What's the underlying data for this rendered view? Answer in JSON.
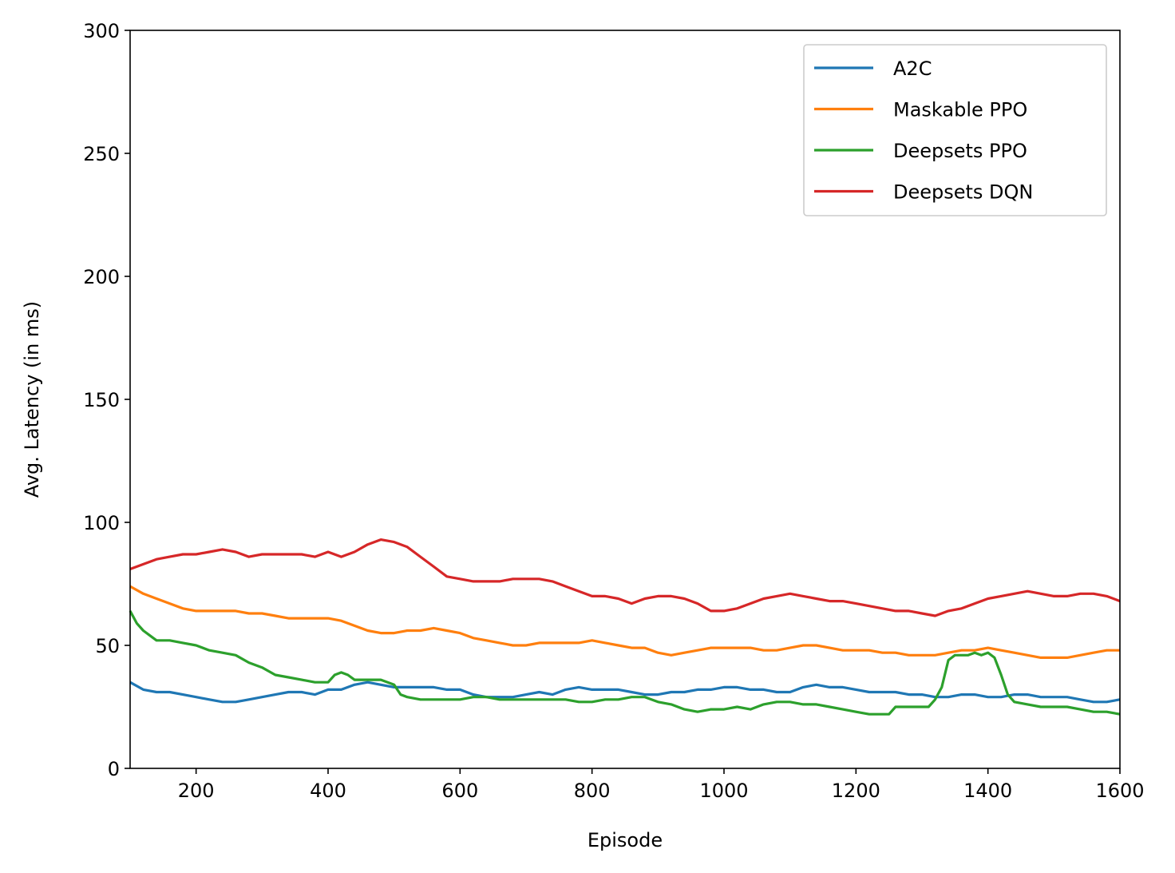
{
  "chart_data": {
    "type": "line",
    "title": "",
    "xlabel": "Episode",
    "ylabel": "Avg. Latency (in ms)",
    "xlim": [
      100,
      1600
    ],
    "ylim": [
      0,
      300
    ],
    "xticks": [
      200,
      400,
      600,
      800,
      1000,
      1200,
      1400,
      1600
    ],
    "xtick_labels": [
      "200",
      "400",
      "600",
      "800",
      "1000",
      "1200",
      "1400",
      "1600"
    ],
    "yticks": [
      0,
      50,
      100,
      150,
      200,
      250,
      300
    ],
    "ytick_labels": [
      "0",
      "50",
      "100",
      "150",
      "200",
      "250",
      "300"
    ],
    "grid": false,
    "legend_position": "top-right",
    "series": [
      {
        "name": "A2C",
        "color": "#1f77b4",
        "x": [
          100,
          120,
          140,
          160,
          180,
          200,
          220,
          240,
          260,
          280,
          300,
          320,
          340,
          360,
          380,
          400,
          420,
          440,
          460,
          480,
          500,
          520,
          540,
          560,
          580,
          600,
          620,
          640,
          660,
          680,
          700,
          720,
          740,
          760,
          780,
          800,
          820,
          840,
          860,
          880,
          900,
          920,
          940,
          960,
          980,
          1000,
          1020,
          1040,
          1060,
          1080,
          1100,
          1120,
          1140,
          1160,
          1180,
          1200,
          1220,
          1240,
          1260,
          1280,
          1300,
          1320,
          1340,
          1360,
          1380,
          1400,
          1420,
          1440,
          1460,
          1480,
          1500,
          1520,
          1540,
          1560,
          1580,
          1600
        ],
        "y": [
          35,
          32,
          31,
          31,
          30,
          29,
          28,
          27,
          27,
          28,
          29,
          30,
          31,
          31,
          30,
          32,
          32,
          34,
          35,
          34,
          33,
          33,
          33,
          33,
          32,
          32,
          30,
          29,
          29,
          29,
          30,
          31,
          30,
          32,
          33,
          32,
          32,
          32,
          31,
          30,
          30,
          31,
          31,
          32,
          32,
          33,
          33,
          32,
          32,
          31,
          31,
          33,
          34,
          33,
          33,
          32,
          31,
          31,
          31,
          30,
          30,
          29,
          29,
          30,
          30,
          29,
          29,
          30,
          30,
          29,
          29,
          29,
          28,
          27,
          27,
          28
        ]
      },
      {
        "name": "Maskable PPO",
        "color": "#ff7f0e",
        "x": [
          100,
          120,
          140,
          160,
          180,
          200,
          220,
          240,
          260,
          280,
          300,
          320,
          340,
          360,
          380,
          400,
          420,
          440,
          460,
          480,
          500,
          520,
          540,
          560,
          580,
          600,
          620,
          640,
          660,
          680,
          700,
          720,
          740,
          760,
          780,
          800,
          820,
          840,
          860,
          880,
          900,
          920,
          940,
          960,
          980,
          1000,
          1020,
          1040,
          1060,
          1080,
          1100,
          1120,
          1140,
          1160,
          1180,
          1200,
          1220,
          1240,
          1260,
          1280,
          1300,
          1320,
          1340,
          1360,
          1380,
          1400,
          1420,
          1440,
          1460,
          1480,
          1500,
          1520,
          1540,
          1560,
          1580,
          1600
        ],
        "y": [
          74,
          71,
          69,
          67,
          65,
          64,
          64,
          64,
          64,
          63,
          63,
          62,
          61,
          61,
          61,
          61,
          60,
          58,
          56,
          55,
          55,
          56,
          56,
          57,
          56,
          55,
          53,
          52,
          51,
          50,
          50,
          51,
          51,
          51,
          51,
          52,
          51,
          50,
          49,
          49,
          47,
          46,
          47,
          48,
          49,
          49,
          49,
          49,
          48,
          48,
          49,
          50,
          50,
          49,
          48,
          48,
          48,
          47,
          47,
          46,
          46,
          46,
          47,
          48,
          48,
          49,
          48,
          47,
          46,
          45,
          45,
          45,
          46,
          47,
          48,
          48
        ]
      },
      {
        "name": "Deepsets PPO",
        "color": "#2ca02c",
        "x": [
          100,
          110,
          120,
          130,
          140,
          160,
          180,
          200,
          220,
          240,
          260,
          280,
          300,
          320,
          340,
          360,
          380,
          400,
          410,
          420,
          430,
          440,
          460,
          480,
          500,
          510,
          520,
          540,
          560,
          580,
          600,
          620,
          640,
          660,
          680,
          700,
          720,
          740,
          760,
          780,
          800,
          820,
          840,
          860,
          880,
          900,
          920,
          940,
          960,
          980,
          1000,
          1020,
          1040,
          1060,
          1080,
          1100,
          1120,
          1140,
          1160,
          1180,
          1200,
          1220,
          1240,
          1250,
          1260,
          1280,
          1300,
          1310,
          1320,
          1330,
          1340,
          1350,
          1360,
          1370,
          1380,
          1390,
          1400,
          1410,
          1420,
          1430,
          1440,
          1460,
          1480,
          1500,
          1520,
          1540,
          1560,
          1580,
          1600
        ],
        "y": [
          64,
          59,
          56,
          54,
          52,
          52,
          51,
          50,
          48,
          47,
          46,
          43,
          41,
          38,
          37,
          36,
          35,
          35,
          38,
          39,
          38,
          36,
          36,
          36,
          34,
          30,
          29,
          28,
          28,
          28,
          28,
          29,
          29,
          28,
          28,
          28,
          28,
          28,
          28,
          27,
          27,
          28,
          28,
          29,
          29,
          27,
          26,
          24,
          23,
          24,
          24,
          25,
          24,
          26,
          27,
          27,
          26,
          26,
          25,
          24,
          23,
          22,
          22,
          22,
          25,
          25,
          25,
          25,
          28,
          33,
          44,
          46,
          46,
          46,
          47,
          46,
          47,
          45,
          38,
          30,
          27,
          26,
          25,
          25,
          25,
          24,
          23,
          23,
          22
        ]
      },
      {
        "name": "Deepsets DQN",
        "color": "#d62728",
        "x": [
          100,
          120,
          140,
          160,
          180,
          200,
          220,
          240,
          260,
          280,
          300,
          320,
          340,
          360,
          380,
          400,
          420,
          440,
          460,
          480,
          500,
          520,
          540,
          560,
          580,
          600,
          620,
          640,
          660,
          680,
          700,
          720,
          740,
          760,
          780,
          800,
          820,
          840,
          860,
          880,
          900,
          920,
          940,
          960,
          980,
          1000,
          1020,
          1040,
          1060,
          1080,
          1100,
          1120,
          1140,
          1160,
          1180,
          1200,
          1220,
          1240,
          1260,
          1280,
          1300,
          1320,
          1340,
          1360,
          1380,
          1400,
          1420,
          1440,
          1460,
          1480,
          1500,
          1520,
          1540,
          1560,
          1580,
          1600
        ],
        "y": [
          81,
          83,
          85,
          86,
          87,
          87,
          88,
          89,
          88,
          86,
          87,
          87,
          87,
          87,
          86,
          88,
          86,
          88,
          91,
          93,
          92,
          90,
          86,
          82,
          78,
          77,
          76,
          76,
          76,
          77,
          77,
          77,
          76,
          74,
          72,
          70,
          70,
          69,
          67,
          69,
          70,
          70,
          69,
          67,
          64,
          64,
          65,
          67,
          69,
          70,
          71,
          70,
          69,
          68,
          68,
          67,
          66,
          65,
          64,
          64,
          63,
          62,
          64,
          65,
          67,
          69,
          70,
          71,
          72,
          71,
          70,
          70,
          71,
          71,
          70,
          68
        ]
      }
    ]
  }
}
